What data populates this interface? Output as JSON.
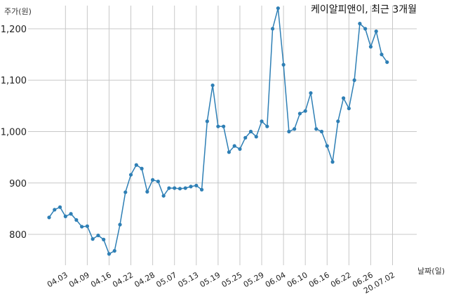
{
  "chart_data": {
    "type": "line",
    "title": "케이알피앤이, 최근 3개월",
    "ylabel": "주가(원)",
    "xlabel": "날짜(일)",
    "ylim": [
      740,
      1245
    ],
    "yticks": [
      800,
      900,
      1000,
      1100,
      1200
    ],
    "ytick_labels": [
      "800",
      "900",
      "1,000",
      "1,100",
      "1,200"
    ],
    "xtick_labels": [
      "04.03",
      "04.09",
      "04.16",
      "04.22",
      "04.28",
      "05.07",
      "05.13",
      "05.19",
      "05.25",
      "05.29",
      "06.04",
      "06.10",
      "06.16",
      "06.22",
      "06.26",
      "20.07.02"
    ],
    "xtick_index": [
      3,
      7,
      11,
      15,
      19,
      23,
      27,
      31,
      35,
      39,
      43,
      47,
      51,
      55,
      59,
      63
    ],
    "grid": true,
    "series": [
      {
        "color": "#2e7fb5",
        "values": [
          833,
          848,
          853,
          835,
          840,
          828,
          815,
          816,
          791,
          798,
          790,
          762,
          768,
          819,
          882,
          916,
          935,
          928,
          883,
          906,
          903,
          875,
          890,
          890,
          889,
          890,
          893,
          895,
          887,
          1020,
          1090,
          1010,
          1010,
          960,
          972,
          966,
          988,
          1000,
          990,
          1020,
          1010,
          1200,
          1240,
          1130,
          1000,
          1005,
          1035,
          1040,
          1075,
          1005,
          1000,
          972,
          941,
          1020,
          1065,
          1045,
          1100,
          1210,
          1200,
          1165,
          1195,
          1150,
          1135
        ]
      }
    ]
  }
}
